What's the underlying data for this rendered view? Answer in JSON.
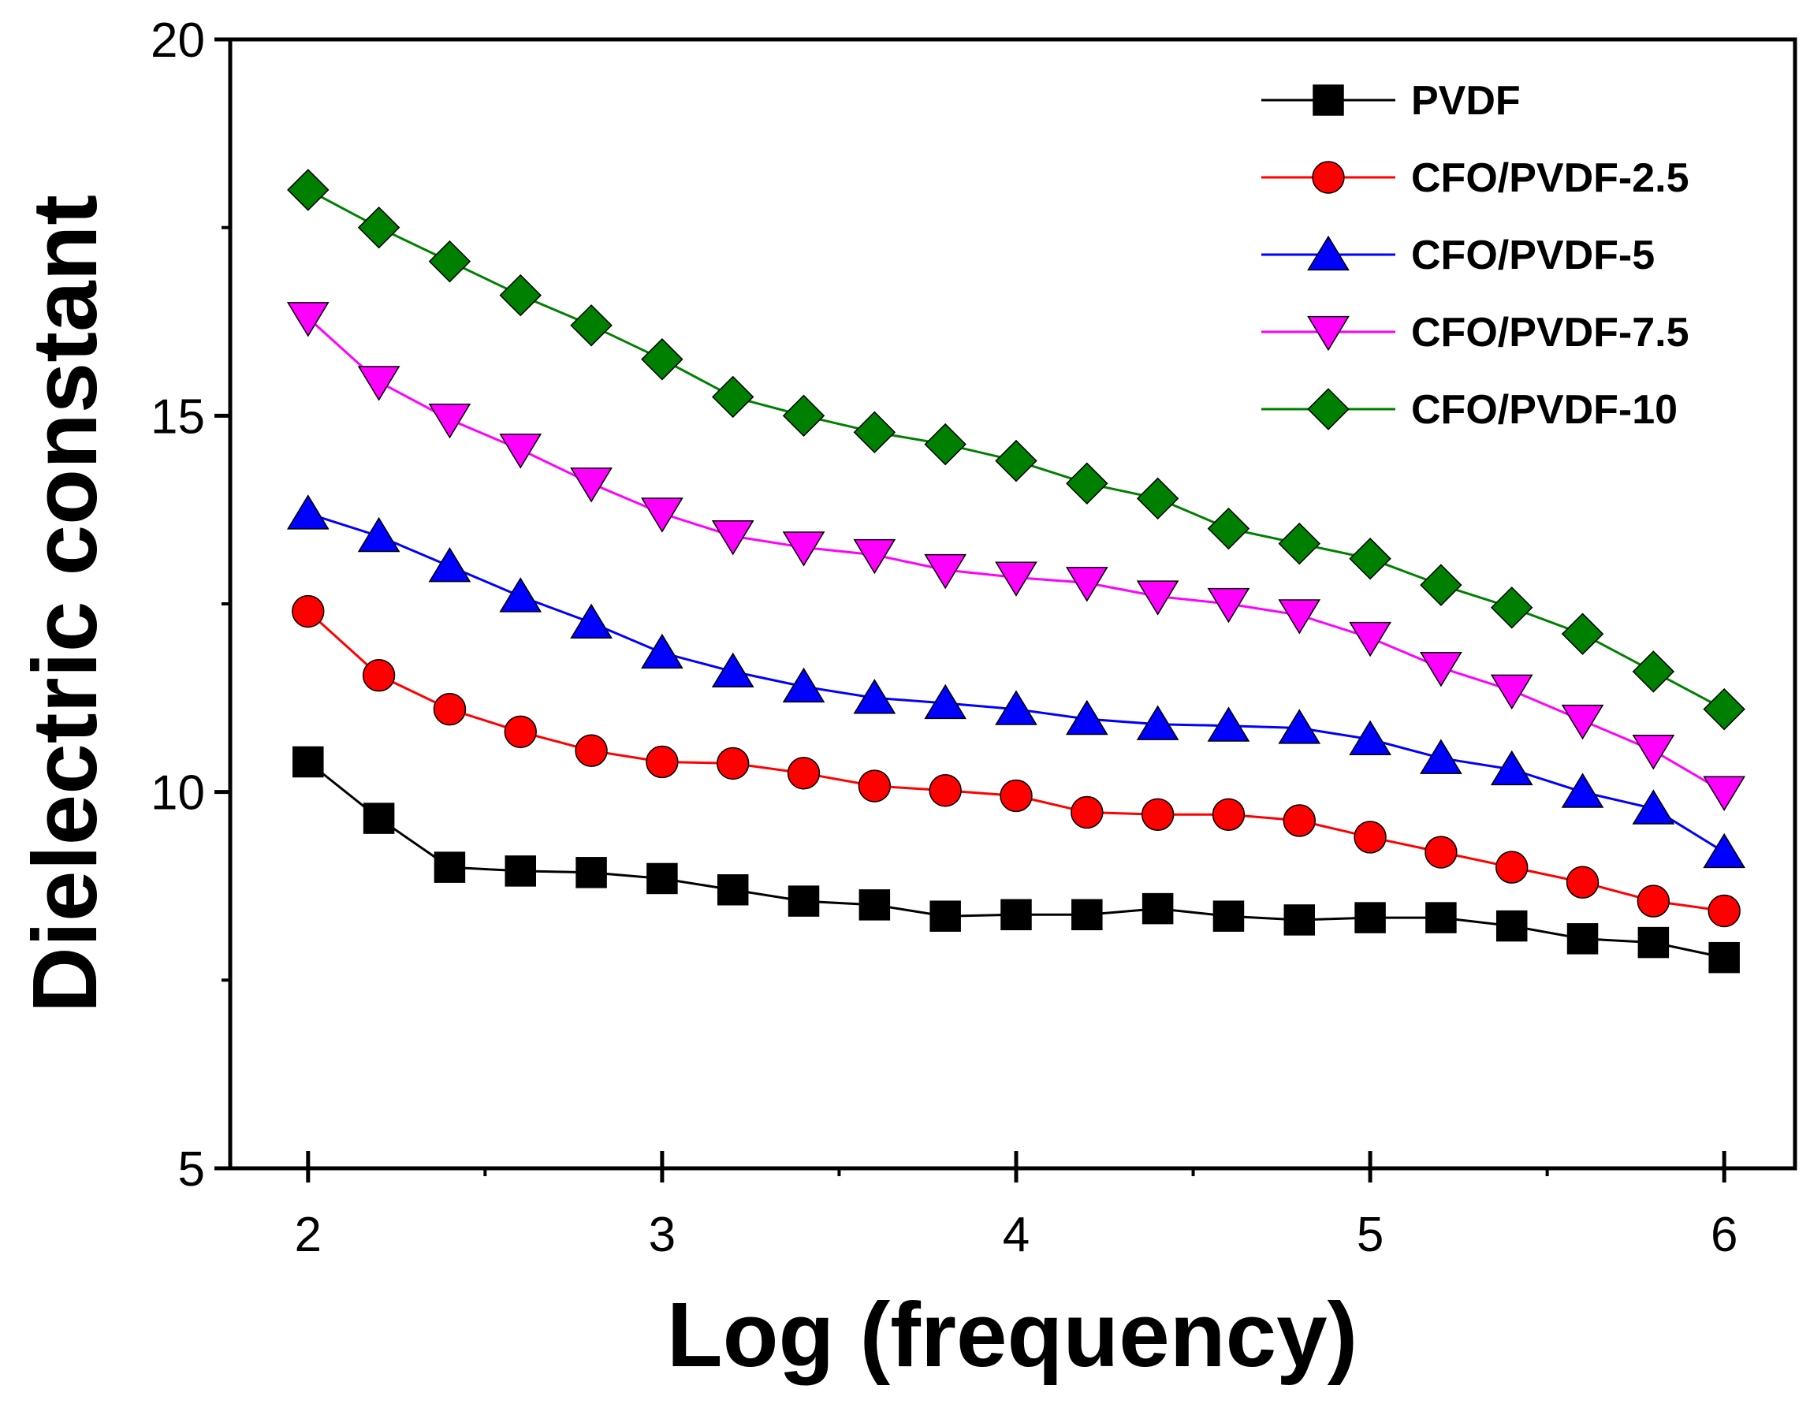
{
  "chart_data": {
    "type": "line",
    "title": "",
    "xlabel": "Log (frequency)",
    "ylabel": "Dielectric constant",
    "xlim": [
      1.78,
      6.2
    ],
    "ylim": [
      5,
      20
    ],
    "xticks": [
      2,
      3,
      4,
      5,
      6
    ],
    "yticks": [
      5,
      10,
      15,
      20
    ],
    "x_minor_ticks": [
      2.5,
      3.5,
      4.5,
      5.5
    ],
    "y_minor_ticks": [
      7.5,
      12.5,
      17.5
    ],
    "grid": false,
    "legend_position": "top-right",
    "x": [
      2.0,
      2.2,
      2.4,
      2.6,
      2.8,
      3.0,
      3.2,
      3.4,
      3.6,
      3.8,
      4.0,
      4.2,
      4.4,
      4.6,
      4.8,
      5.0,
      5.2,
      5.4,
      5.6,
      5.8,
      6.0
    ],
    "series": [
      {
        "name": "PVDF",
        "marker": "square",
        "color": "#000000",
        "values": [
          10.4,
          9.65,
          9.0,
          8.95,
          8.93,
          8.85,
          8.7,
          8.55,
          8.5,
          8.35,
          8.37,
          8.37,
          8.45,
          8.35,
          8.3,
          8.33,
          8.33,
          8.22,
          8.05,
          8.0,
          7.8
        ]
      },
      {
        "name": "CFO/PVDF-2.5",
        "marker": "circle",
        "color": "#ff0000",
        "values": [
          12.4,
          11.55,
          11.1,
          10.8,
          10.55,
          10.4,
          10.38,
          10.25,
          10.08,
          10.02,
          9.95,
          9.73,
          9.7,
          9.7,
          9.62,
          9.4,
          9.2,
          9.0,
          8.8,
          8.55,
          8.42
        ]
      },
      {
        "name": "CFO/PVDF-5",
        "marker": "triangle-up",
        "color": "#0000ff",
        "values": [
          13.7,
          13.4,
          13.0,
          12.6,
          12.25,
          11.85,
          11.6,
          11.4,
          11.25,
          11.18,
          11.1,
          10.97,
          10.9,
          10.88,
          10.85,
          10.7,
          10.45,
          10.3,
          10.0,
          9.78,
          9.2
        ]
      },
      {
        "name": "CFO/PVDF-7.5",
        "marker": "triangle-down",
        "color": "#ff00ff",
        "values": [
          16.3,
          15.45,
          14.95,
          14.55,
          14.1,
          13.7,
          13.4,
          13.25,
          13.15,
          12.95,
          12.85,
          12.78,
          12.6,
          12.5,
          12.35,
          12.05,
          11.65,
          11.35,
          10.95,
          10.55,
          10.0
        ]
      },
      {
        "name": "CFO/PVDF-10",
        "marker": "diamond",
        "color": "#008000",
        "values": [
          18.0,
          17.5,
          17.05,
          16.6,
          16.2,
          15.75,
          15.25,
          15.0,
          14.78,
          14.62,
          14.4,
          14.1,
          13.9,
          13.5,
          13.3,
          13.1,
          12.75,
          12.45,
          12.1,
          11.6,
          11.1
        ]
      }
    ]
  }
}
